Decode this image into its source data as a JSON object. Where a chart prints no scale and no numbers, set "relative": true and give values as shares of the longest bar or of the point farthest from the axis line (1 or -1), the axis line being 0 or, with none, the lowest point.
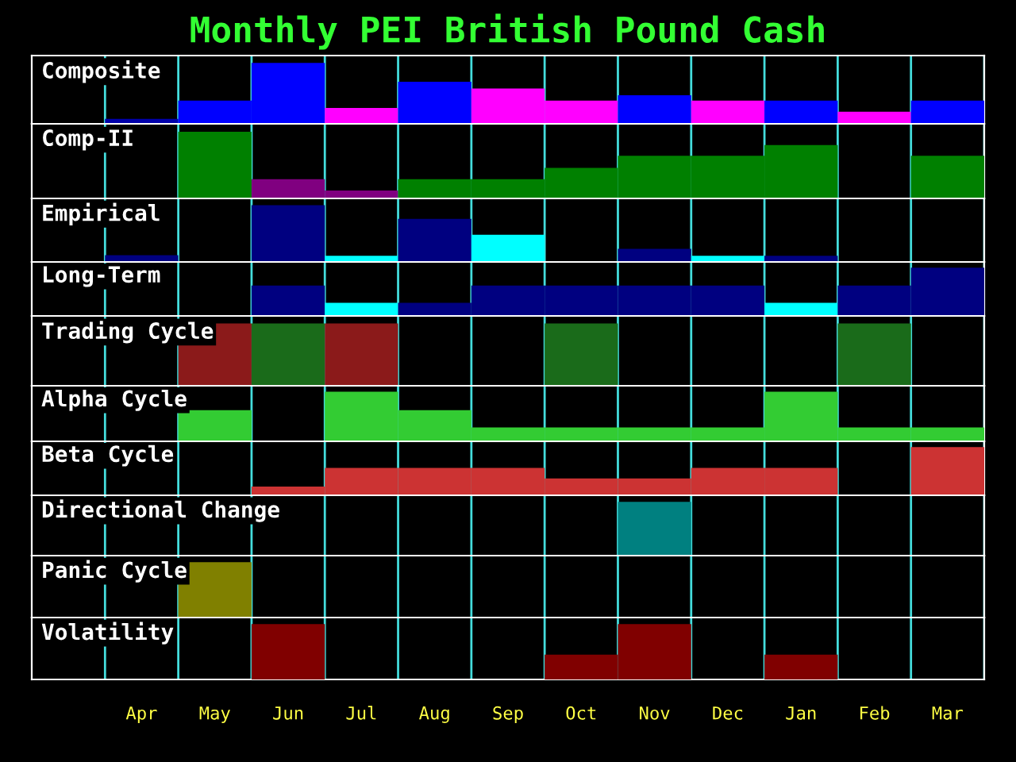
{
  "chart_data": [
    {
      "type": "bar",
      "title": "Monthly PEI British Pound Cash",
      "subtitle": "Composite",
      "relative": true,
      "tick_labels": false,
      "grid": "x",
      "values": [
        0.08,
        0.38,
        1,
        0.26,
        0.69,
        0.58,
        0.38,
        0.47,
        0.38,
        0.38,
        0.2,
        0.38
      ],
      "colors": [
        "#0000aa",
        "#0000ff",
        "#0000ff",
        "#ff00ff",
        "#0000ff",
        "#ff00ff",
        "#ff00ff",
        "#0000ff",
        "#ff00ff",
        "#0000ff",
        "#ff00ff",
        "#0000ff"
      ]
    },
    {
      "type": "bar",
      "subtitle": "Comp-II",
      "relative": true,
      "tick_labels": false,
      "grid": "x",
      "values": [
        null,
        1,
        0.29,
        0.12,
        0.29,
        0.29,
        0.46,
        0.64,
        0.64,
        0.8,
        null,
        0.64
      ],
      "colors": [
        null,
        "#008000",
        "#800080",
        "#800080",
        "#008000",
        "#008000",
        "#008000",
        "#008000",
        "#008000",
        "#008000",
        null,
        "#008000"
      ]
    },
    {
      "type": "bar",
      "subtitle": "Empirical",
      "relative": true,
      "tick_labels": false,
      "grid": "x",
      "values": [
        0.12,
        null,
        1,
        0.11,
        0.76,
        0.48,
        null,
        0.23,
        0.11,
        0.11,
        null,
        null
      ],
      "colors": [
        "#000080",
        null,
        "#000080",
        "#00ffff",
        "#000080",
        "#00ffff",
        null,
        "#000080",
        "#00ffff",
        "#000080",
        null,
        null
      ]
    },
    {
      "type": "bar",
      "subtitle": "Long-Term",
      "relative": true,
      "tick_labels": false,
      "grid": "x",
      "values": [
        null,
        null,
        0.63,
        0.27,
        0.27,
        0.63,
        0.63,
        0.63,
        0.63,
        0.27,
        0.63,
        1
      ],
      "colors": [
        null,
        null,
        "#000080",
        "#00ffff",
        "#000080",
        "#000080",
        "#000080",
        "#000080",
        "#000080",
        "#00ffff",
        "#000080",
        "#000080"
      ]
    },
    {
      "type": "bar",
      "subtitle": "Trading Cycle",
      "relative": true,
      "tick_labels": false,
      "grid": "x",
      "values": [
        null,
        1,
        1,
        1,
        null,
        null,
        1,
        null,
        null,
        null,
        1,
        null
      ],
      "colors": [
        null,
        "#8b1a1a",
        "#1a6b1a",
        "#8b1a1a",
        null,
        null,
        "#1a6b1a",
        null,
        null,
        null,
        "#1a6b1a",
        null
      ]
    },
    {
      "type": "bar",
      "subtitle": "Alpha Cycle",
      "relative": true,
      "tick_labels": false,
      "grid": "x",
      "values": [
        null,
        0.63,
        null,
        1,
        0.63,
        0.28,
        0.28,
        0.28,
        0.28,
        1,
        0.28,
        0.28
      ],
      "colors": [
        null,
        "#33cc33",
        null,
        "#33cc33",
        "#33cc33",
        "#33cc33",
        "#33cc33",
        "#33cc33",
        "#33cc33",
        "#33cc33",
        "#33cc33",
        "#33cc33"
      ]
    },
    {
      "type": "bar",
      "subtitle": "Beta Cycle",
      "relative": true,
      "tick_labels": false,
      "grid": "x",
      "values": [
        null,
        null,
        0.18,
        0.57,
        0.57,
        0.57,
        0.35,
        0.35,
        0.57,
        0.57,
        null,
        1
      ],
      "colors": [
        null,
        null,
        "#cc3333",
        "#cc3333",
        "#cc3333",
        "#cc3333",
        "#cc3333",
        "#cc3333",
        "#cc3333",
        "#cc3333",
        null,
        "#cc3333"
      ]
    },
    {
      "type": "bar",
      "subtitle": "Directional Change",
      "relative": true,
      "tick_labels": false,
      "grid": "x",
      "values": [
        null,
        null,
        null,
        null,
        null,
        null,
        null,
        1,
        null,
        null,
        null,
        null
      ],
      "colors": [
        null,
        null,
        null,
        null,
        null,
        null,
        null,
        "#008080",
        null,
        null,
        null,
        null
      ]
    },
    {
      "type": "bar",
      "subtitle": "Panic Cycle",
      "relative": true,
      "tick_labels": false,
      "grid": "x",
      "values": [
        null,
        1,
        null,
        null,
        null,
        null,
        null,
        null,
        null,
        null,
        null,
        null
      ],
      "colors": [
        null,
        "#808000",
        null,
        null,
        null,
        null,
        null,
        null,
        null,
        null,
        null,
        null
      ]
    },
    {
      "type": "bar",
      "subtitle": "Volatility",
      "relative": true,
      "tick_labels": "x",
      "grid": "x",
      "categories": [
        "Apr",
        "May",
        "Jun",
        "Jul",
        "Aug",
        "Sep",
        "Oct",
        "Nov",
        "Dec",
        "Jan",
        "Feb",
        "Mar"
      ],
      "values": [
        null,
        null,
        1,
        null,
        null,
        null,
        0.45,
        1,
        null,
        0.45,
        null,
        null
      ],
      "colors": [
        null,
        null,
        "#800000",
        null,
        null,
        null,
        "#800000",
        "#800000",
        null,
        "#800000",
        null,
        null
      ]
    }
  ]
}
